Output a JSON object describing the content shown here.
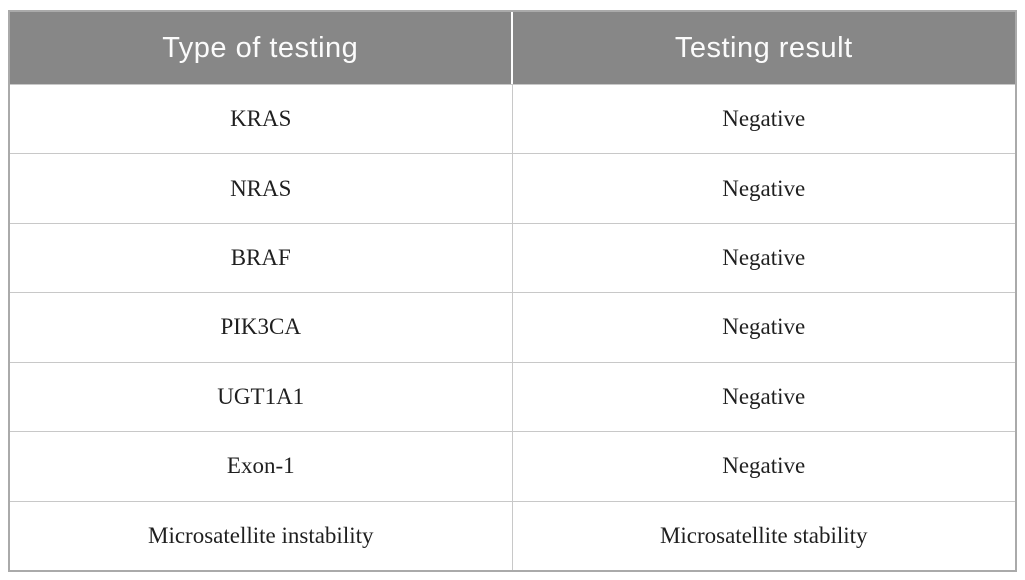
{
  "table": {
    "columns": [
      {
        "label": "Type of testing"
      },
      {
        "label": "Testing result"
      }
    ],
    "rows": [
      {
        "type": "KRAS",
        "result": "Negative"
      },
      {
        "type": "NRAS",
        "result": "Negative"
      },
      {
        "type": "BRAF",
        "result": "Negative"
      },
      {
        "type": "PIK3CA",
        "result": "Negative"
      },
      {
        "type": "UGT1A1",
        "result": "Negative"
      },
      {
        "type": "Exon-1",
        "result": "Negative"
      },
      {
        "type": "Microsatellite instability",
        "result": "Microsatellite stability"
      }
    ]
  },
  "colors": {
    "header_background": "#878787",
    "header_text": "#fbfbfb",
    "body_text": "#1f1f1f",
    "row_divider": "#c8c8c8",
    "outer_border": "#aaaaaa"
  }
}
